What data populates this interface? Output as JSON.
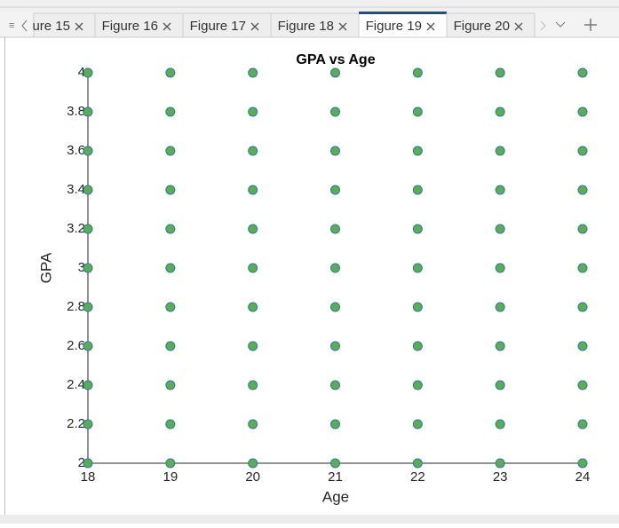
{
  "tabs": [
    {
      "label": "ure 15"
    },
    {
      "label": "Figure 16"
    },
    {
      "label": "Figure 17"
    },
    {
      "label": "Figure 18"
    },
    {
      "label": "Figure 19",
      "active": true
    },
    {
      "label": "Figure 20"
    }
  ],
  "chart_data": {
    "type": "scatter",
    "title": "GPA vs Age",
    "x_label": "Age",
    "y_label": "GPA",
    "series": [
      {
        "color": "#5aae4e",
        "edgecolor": "#2e75b6",
        "x": [
          18,
          18,
          18,
          18,
          18,
          18,
          18,
          18,
          18,
          18,
          18,
          19,
          19,
          19,
          19,
          19,
          19,
          19,
          19,
          19,
          19,
          19,
          20,
          20,
          20,
          20,
          20,
          20,
          20,
          20,
          20,
          20,
          20,
          21,
          21,
          21,
          21,
          21,
          21,
          21,
          21,
          21,
          21,
          21,
          22,
          22,
          22,
          22,
          22,
          22,
          22,
          22,
          22,
          22,
          22,
          23,
          23,
          23,
          23,
          23,
          23,
          23,
          23,
          23,
          23,
          23,
          24,
          24,
          24,
          24,
          24,
          24,
          24,
          24,
          24,
          24,
          24
        ],
        "values": [
          2,
          2.2,
          2.4,
          2.6,
          2.8,
          3,
          3.2,
          3.4,
          3.6,
          3.8,
          4,
          2,
          2.2,
          2.4,
          2.6,
          2.8,
          3,
          3.2,
          3.4,
          3.6,
          3.8,
          4,
          2,
          2.2,
          2.4,
          2.6,
          2.8,
          3,
          3.2,
          3.4,
          3.6,
          3.8,
          4,
          2,
          2.2,
          2.4,
          2.6,
          2.8,
          3,
          3.2,
          3.4,
          3.6,
          3.8,
          4,
          2,
          2.2,
          2.4,
          2.6,
          2.8,
          3,
          3.2,
          3.4,
          3.6,
          3.8,
          4,
          2,
          2.2,
          2.4,
          2.6,
          2.8,
          3,
          3.2,
          3.4,
          3.6,
          3.8,
          4,
          2,
          2.2,
          2.4,
          2.6,
          2.8,
          3,
          3.2,
          3.4,
          3.6,
          3.8,
          4
        ]
      }
    ],
    "xlim": [
      18,
      24
    ],
    "ylim": [
      2,
      4
    ],
    "xticks": [
      18,
      19,
      20,
      21,
      22,
      23,
      24
    ],
    "yticks": [
      2,
      2.2,
      2.4,
      2.6,
      2.8,
      3,
      3.2,
      3.4,
      3.6,
      3.8,
      4
    ]
  }
}
